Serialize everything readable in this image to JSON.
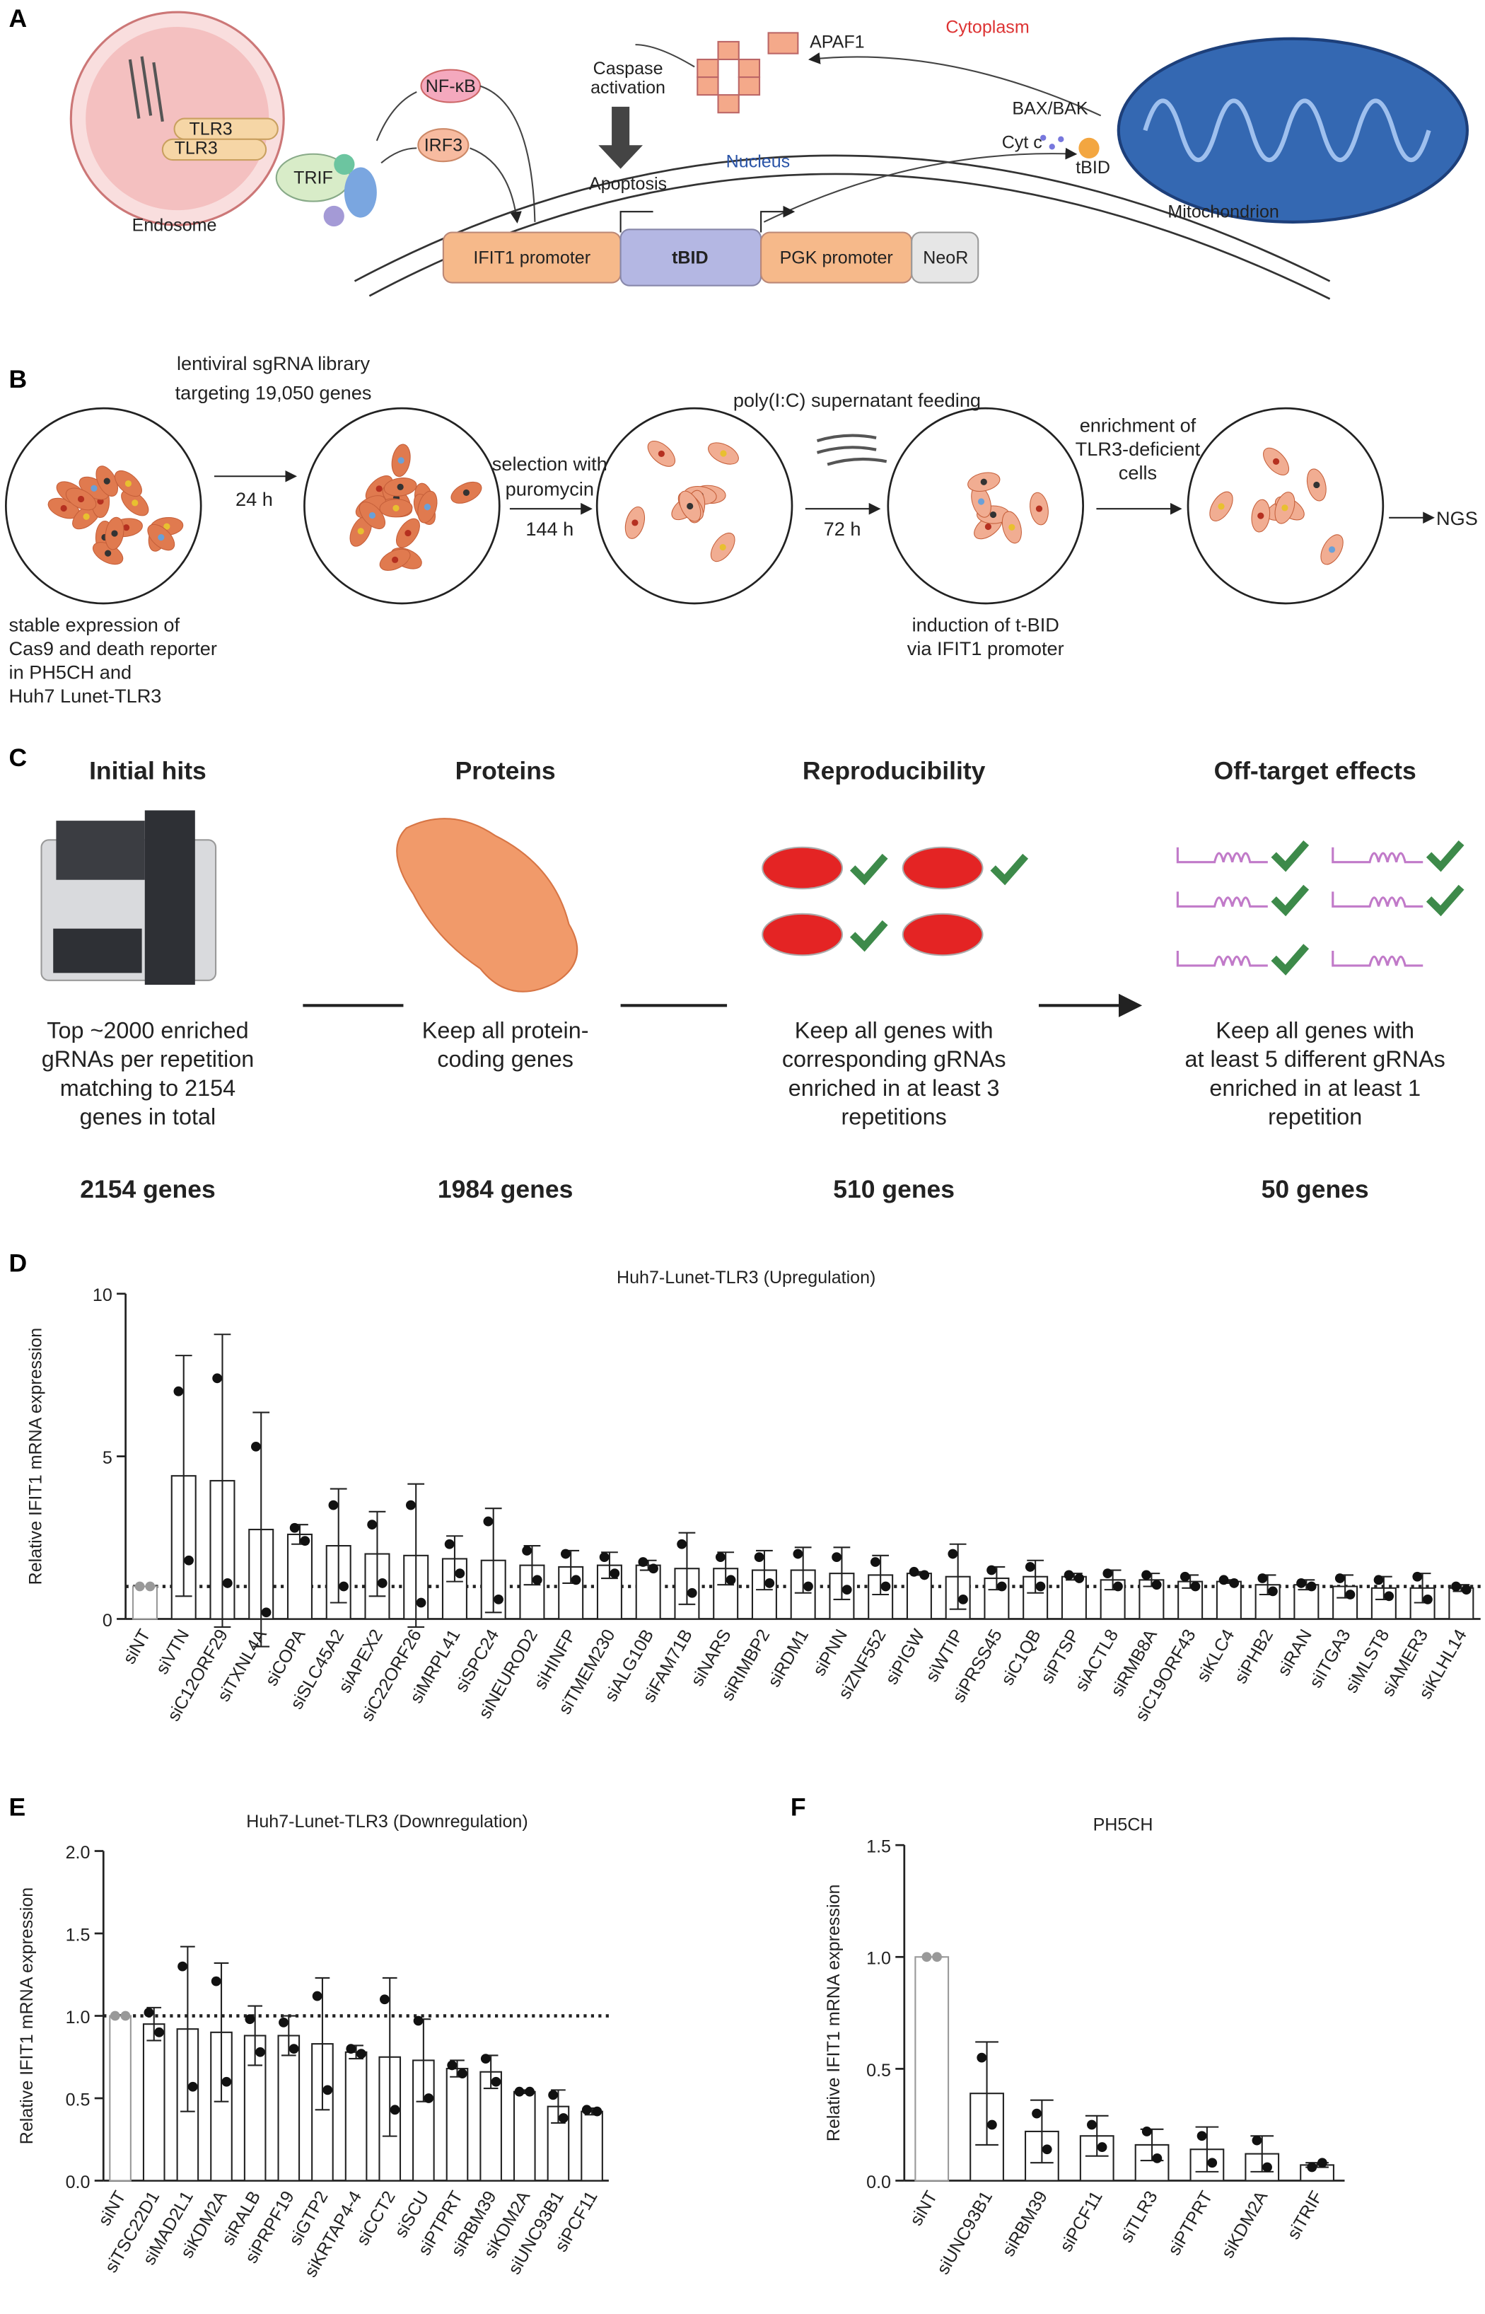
{
  "panel_a": {
    "label": "A",
    "cytoplasm": "Cytoplasm",
    "nfkb": "NF-κB",
    "irf3": "IRF3",
    "apaf1": "APAF1",
    "caspase": [
      "Caspase",
      "activation"
    ],
    "apoptosis": "Apoptosis",
    "nucleus": "Nucleus",
    "baxbak": "BAX/BAK",
    "cytc": "Cyt c",
    "tbid_small": "tBID",
    "tlr3_a": "TLR3",
    "tlr3_b": "TLR3",
    "trif": "TRIF",
    "endosome": "Endosome",
    "mitochondrion": "Mitochondrion",
    "ifit1_promoter": "IFIT1 promoter",
    "tbid": "tBID",
    "pgk_promoter": "PGK promoter",
    "neor": "NeoR"
  },
  "panel_b": {
    "label": "B",
    "library": [
      "lentiviral sgRNA library",
      "targeting 19,050 genes"
    ],
    "t24": "24 h",
    "selection": [
      "selection with",
      "puromycin"
    ],
    "t144": "144 h",
    "feeding": "poly(I:C) supernatant feeding",
    "t72": "72 h",
    "enrichment": [
      "enrichment of",
      "TLR3-deficient",
      "cells"
    ],
    "ngs": "NGS",
    "stable": [
      "stable expression of",
      "Cas9 and death reporter",
      "in PH5CH and",
      "Huh7 Lunet-TLR3"
    ],
    "induction": [
      "induction of t-BID",
      "via IFIT1 promoter"
    ]
  },
  "panel_c": {
    "label": "C",
    "steps": [
      {
        "title": "Initial hits",
        "text": [
          "Top ~2000 enriched",
          "gRNAs per repetition",
          "matching to 2154",
          "genes in total"
        ],
        "count": "2154 genes"
      },
      {
        "title": "Proteins",
        "text": [
          "Keep all protein-",
          "coding genes"
        ],
        "count": "1984 genes"
      },
      {
        "title": "Reproducibility",
        "text": [
          "Keep all genes with",
          "corresponding gRNAs",
          "enriched in at least 3",
          "repetitions"
        ],
        "count": "510 genes"
      },
      {
        "title": "Off-target effects",
        "text": [
          "Keep all genes with",
          "at least 5 different gRNAs",
          "enriched in at least 1",
          "repetition"
        ],
        "count": "50 genes"
      }
    ]
  },
  "chart_data": [
    {
      "type": "bar",
      "panel_label": "D",
      "title": "Huh7-Lunet-TLR3 (Upregulation)",
      "y_label": "Relative IFIT1 mRNA expression",
      "categories": [
        "siNT",
        "siVTN",
        "siC12ORF29",
        "siTXNL4A",
        "siCOPA",
        "siSLC45A2",
        "siAPEX2",
        "siC22ORF26",
        "siMRPL41",
        "siSPC24",
        "siNEUROD2",
        "siHINFP",
        "siTMEM230",
        "siALG10B",
        "siFAM71B",
        "siNARS",
        "siRIMBP2",
        "siRDM1",
        "siPNN",
        "siZNF552",
        "siPIGW",
        "siWTIP",
        "siPRSS45",
        "siC1QB",
        "siPTSP",
        "siACTL8",
        "siRMB8A",
        "siC19ORF43",
        "siKLC4",
        "siPHB2",
        "siRAN",
        "siITGA3",
        "siMLST8",
        "siAMER3",
        "siKLHL14"
      ],
      "values": [
        1.0,
        4.4,
        4.25,
        2.75,
        2.6,
        2.25,
        2.0,
        1.95,
        1.85,
        1.8,
        1.65,
        1.6,
        1.65,
        1.65,
        1.55,
        1.55,
        1.5,
        1.5,
        1.4,
        1.35,
        1.4,
        1.3,
        1.25,
        1.3,
        1.3,
        1.2,
        1.2,
        1.15,
        1.15,
        1.05,
        1.05,
        1.0,
        0.95,
        0.95,
        0.95
      ],
      "errors": [
        0,
        3.7,
        4.5,
        3.6,
        0.3,
        1.75,
        1.3,
        2.2,
        0.7,
        1.6,
        0.6,
        0.5,
        0.4,
        0.15,
        1.1,
        0.5,
        0.6,
        0.7,
        0.8,
        0.6,
        0.05,
        1.0,
        0.35,
        0.5,
        0.1,
        0.3,
        0.2,
        0.2,
        0.05,
        0.3,
        0.15,
        0.35,
        0.35,
        0.45,
        0.1
      ],
      "points": [
        [
          1,
          1
        ],
        [
          7.0,
          1.8
        ],
        [
          7.4,
          1.1
        ],
        [
          5.3,
          0.2
        ],
        [
          2.8,
          2.4
        ],
        [
          3.5,
          1.0
        ],
        [
          2.9,
          1.1
        ],
        [
          3.5,
          0.5
        ],
        [
          2.3,
          1.4
        ],
        [
          3.0,
          0.6
        ],
        [
          2.1,
          1.2
        ],
        [
          2.0,
          1.2
        ],
        [
          1.9,
          1.4
        ],
        [
          1.75,
          1.55
        ],
        [
          2.3,
          0.8
        ],
        [
          1.9,
          1.2
        ],
        [
          1.9,
          1.1
        ],
        [
          2.0,
          1.0
        ],
        [
          1.9,
          0.9
        ],
        [
          1.75,
          1.0
        ],
        [
          1.45,
          1.35
        ],
        [
          2.0,
          0.6
        ],
        [
          1.5,
          1.0
        ],
        [
          1.6,
          1.0
        ],
        [
          1.35,
          1.25
        ],
        [
          1.4,
          1.0
        ],
        [
          1.35,
          1.05
        ],
        [
          1.3,
          1.0
        ],
        [
          1.2,
          1.1
        ],
        [
          1.25,
          0.85
        ],
        [
          1.1,
          1.0
        ],
        [
          1.25,
          0.75
        ],
        [
          1.2,
          0.7
        ],
        [
          1.3,
          0.6
        ],
        [
          1.0,
          0.9
        ]
      ],
      "ylim": [
        0,
        10
      ],
      "yticks": [
        0,
        5,
        10
      ],
      "reference_line": 1,
      "edge_color": "#222222",
      "control_color": "#999999"
    },
    {
      "type": "bar",
      "panel_label": "E",
      "title": "Huh7-Lunet-TLR3 (Downregulation)",
      "y_label": "Relative IFIT1 mRNA expression",
      "categories": [
        "siNT",
        "siTSC22D1",
        "siMAD2L1",
        "siKDM2A",
        "siRALB",
        "siPRPF19",
        "siGTP2",
        "siKRTAP4-4",
        "siCCT2",
        "siSCU",
        "siPTPRT",
        "siRBM39",
        "siKDM2A",
        "siUNC93B1",
        "siPCF11"
      ],
      "values": [
        1.0,
        0.95,
        0.92,
        0.9,
        0.88,
        0.88,
        0.83,
        0.78,
        0.75,
        0.73,
        0.68,
        0.66,
        0.54,
        0.45,
        0.42
      ],
      "errors": [
        0,
        0.1,
        0.5,
        0.42,
        0.18,
        0.12,
        0.4,
        0.04,
        0.48,
        0.25,
        0.05,
        0.1,
        0.01,
        0.1,
        0.02
      ],
      "points": [
        [
          1,
          1
        ],
        [
          1.02,
          0.9
        ],
        [
          1.3,
          0.57
        ],
        [
          1.21,
          0.6
        ],
        [
          0.98,
          0.78
        ],
        [
          0.96,
          0.8
        ],
        [
          1.12,
          0.55
        ],
        [
          0.8,
          0.77
        ],
        [
          1.1,
          0.43
        ],
        [
          0.97,
          0.5
        ],
        [
          0.7,
          0.65
        ],
        [
          0.74,
          0.6
        ],
        [
          0.54,
          0.54
        ],
        [
          0.52,
          0.38
        ],
        [
          0.43,
          0.42
        ]
      ],
      "ylim": [
        0,
        2
      ],
      "yticks": [
        {
          "value": 0,
          "label": "0.0"
        },
        0.5,
        {
          "value": 1,
          "label": "1.0"
        },
        1.5,
        {
          "value": 2,
          "label": "2.0"
        }
      ],
      "reference_line": 1,
      "edge_color": "#222222",
      "control_color": "#999999"
    },
    {
      "type": "bar",
      "panel_label": "F",
      "title": "PH5CH",
      "y_label": "Relative IFIT1 mRNA expression",
      "categories": [
        "siNT",
        "siUNC93B1",
        "siRBM39",
        "siPCF11",
        "siTLR3",
        "siPTPRT",
        "siKDM2A",
        "siTRIF"
      ],
      "values": [
        1.0,
        0.39,
        0.22,
        0.2,
        0.16,
        0.14,
        0.12,
        0.07
      ],
      "errors": [
        0,
        0.23,
        0.14,
        0.09,
        0.07,
        0.1,
        0.08,
        0.01
      ],
      "points": [
        [
          1,
          1
        ],
        [
          0.55,
          0.25
        ],
        [
          0.3,
          0.14
        ],
        [
          0.25,
          0.15
        ],
        [
          0.22,
          0.1
        ],
        [
          0.2,
          0.08
        ],
        [
          0.18,
          0.06
        ],
        [
          0.06,
          0.08
        ]
      ],
      "ylim": [
        0,
        1.5
      ],
      "yticks": [
        {
          "value": 0,
          "label": "0.0"
        },
        0.5,
        {
          "value": 1,
          "label": "1.0"
        },
        1.5
      ],
      "edge_color": "#222222",
      "control_color": "#999999"
    }
  ]
}
